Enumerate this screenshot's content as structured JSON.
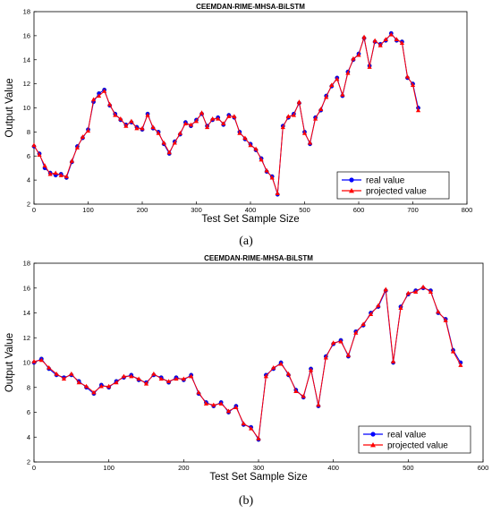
{
  "captions": [
    "(a)",
    "(b)"
  ],
  "chart_data": [
    {
      "type": "line",
      "title": "CEEMDAN-RIME-MHSA-BiLSTM",
      "xlabel": "Test Set Sample Size",
      "ylabel": "Output Value",
      "xlim": [
        0,
        800
      ],
      "ylim": [
        2,
        18
      ],
      "xticks": [
        0,
        100,
        200,
        300,
        400,
        500,
        600,
        700,
        800
      ],
      "yticks": [
        2,
        4,
        6,
        8,
        10,
        12,
        14,
        16,
        18
      ],
      "grid": false,
      "legend_position": "bottom-right",
      "series": [
        {
          "name": "real value",
          "color": "#0000ff",
          "marker": "circle"
        },
        {
          "name": "projected value",
          "color": "#ff0000",
          "marker": "triangle"
        }
      ],
      "x": [
        0,
        10,
        20,
        30,
        40,
        50,
        60,
        70,
        80,
        90,
        100,
        110,
        120,
        130,
        140,
        150,
        160,
        170,
        180,
        190,
        200,
        210,
        220,
        230,
        240,
        250,
        260,
        270,
        280,
        290,
        300,
        310,
        320,
        330,
        340,
        350,
        360,
        370,
        380,
        390,
        400,
        410,
        420,
        430,
        440,
        450,
        460,
        470,
        480,
        490,
        500,
        510,
        520,
        530,
        540,
        550,
        560,
        570,
        580,
        590,
        600,
        610,
        620,
        630,
        640,
        650,
        660,
        670,
        680,
        690,
        700,
        710
      ],
      "real": [
        6.8,
        6.2,
        5.0,
        4.6,
        4.4,
        4.5,
        4.2,
        5.5,
        6.8,
        7.5,
        8.2,
        10.5,
        11.2,
        11.5,
        10.2,
        9.5,
        9.0,
        8.6,
        8.8,
        8.4,
        8.2,
        9.5,
        8.3,
        8.0,
        7.0,
        6.2,
        7.2,
        7.8,
        8.8,
        8.5,
        9.0,
        9.5,
        8.5,
        9.0,
        9.2,
        8.6,
        9.4,
        9.2,
        8.0,
        7.4,
        7.0,
        6.5,
        5.8,
        4.7,
        4.3,
        2.8,
        8.5,
        9.2,
        9.5,
        10.4,
        8.0,
        7.0,
        9.2,
        9.8,
        11.0,
        11.8,
        12.5,
        11.0,
        13.0,
        14.0,
        14.5,
        15.8,
        13.5,
        15.5,
        15.3,
        15.6,
        16.2,
        15.6,
        15.5,
        12.5,
        12.0,
        10.0
      ],
      "projected": [
        6.9,
        6.1,
        5.2,
        4.5,
        4.6,
        4.4,
        4.3,
        5.6,
        6.7,
        7.6,
        8.1,
        10.7,
        11.0,
        11.4,
        10.3,
        9.4,
        9.1,
        8.5,
        8.9,
        8.3,
        8.3,
        9.4,
        8.4,
        7.9,
        7.1,
        6.3,
        7.1,
        7.9,
        8.7,
        8.6,
        8.9,
        9.6,
        8.4,
        9.1,
        9.1,
        8.7,
        9.3,
        9.3,
        7.9,
        7.5,
        6.9,
        6.6,
        5.7,
        4.8,
        4.2,
        2.9,
        8.4,
        9.3,
        9.4,
        10.5,
        7.9,
        7.1,
        9.1,
        9.9,
        10.9,
        11.9,
        12.4,
        11.1,
        12.9,
        14.1,
        14.4,
        15.9,
        13.4,
        15.6,
        15.2,
        15.7,
        16.1,
        15.7,
        15.4,
        12.6,
        11.9,
        9.8
      ]
    },
    {
      "type": "line",
      "title": "CEEMDAN-RIME-MHSA-BiLSTM",
      "xlabel": "Test Set Sample Size",
      "ylabel": "Output Value",
      "xlim": [
        0,
        600
      ],
      "ylim": [
        2,
        18
      ],
      "xticks": [
        0,
        100,
        200,
        300,
        400,
        500,
        600
      ],
      "yticks": [
        2,
        4,
        6,
        8,
        10,
        12,
        14,
        16,
        18
      ],
      "grid": false,
      "legend_position": "bottom-right",
      "series": [
        {
          "name": "real value",
          "color": "#0000ff",
          "marker": "circle"
        },
        {
          "name": "projected value",
          "color": "#ff0000",
          "marker": "triangle"
        }
      ],
      "x": [
        0,
        10,
        20,
        30,
        40,
        50,
        60,
        70,
        80,
        90,
        100,
        110,
        120,
        130,
        140,
        150,
        160,
        170,
        180,
        190,
        200,
        210,
        220,
        230,
        240,
        250,
        260,
        270,
        280,
        290,
        300,
        310,
        320,
        330,
        340,
        350,
        360,
        370,
        380,
        390,
        400,
        410,
        420,
        430,
        440,
        450,
        460,
        470,
        480,
        490,
        500,
        510,
        520,
        530,
        540,
        550,
        560,
        570
      ],
      "real": [
        10.0,
        10.3,
        9.5,
        9.0,
        8.8,
        9.0,
        8.5,
        8.0,
        7.5,
        8.2,
        8.0,
        8.5,
        8.8,
        9.0,
        8.6,
        8.4,
        9.0,
        8.8,
        8.4,
        8.8,
        8.6,
        9.0,
        7.5,
        6.8,
        6.5,
        6.8,
        6.0,
        6.5,
        5.0,
        4.8,
        3.8,
        9.0,
        9.5,
        10.0,
        9.0,
        7.8,
        7.2,
        9.5,
        6.5,
        10.5,
        11.5,
        11.8,
        10.5,
        12.5,
        13.0,
        14.0,
        14.5,
        15.8,
        10.0,
        14.5,
        15.5,
        15.8,
        16.0,
        15.8,
        14.0,
        13.5,
        11.0,
        10.0
      ],
      "projected": [
        10.1,
        10.2,
        9.6,
        9.1,
        8.7,
        9.1,
        8.4,
        8.1,
        7.6,
        8.1,
        8.1,
        8.4,
        8.9,
        8.9,
        8.7,
        8.3,
        9.1,
        8.7,
        8.5,
        8.7,
        8.7,
        8.9,
        7.6,
        6.7,
        6.6,
        6.7,
        6.1,
        6.4,
        5.1,
        4.7,
        3.9,
        8.9,
        9.6,
        9.9,
        9.1,
        7.7,
        7.3,
        9.4,
        6.6,
        10.4,
        11.6,
        11.7,
        10.6,
        12.4,
        13.1,
        13.9,
        14.6,
        15.9,
        10.1,
        14.4,
        15.6,
        15.7,
        16.1,
        15.7,
        14.1,
        13.4,
        10.9,
        9.8
      ]
    }
  ]
}
